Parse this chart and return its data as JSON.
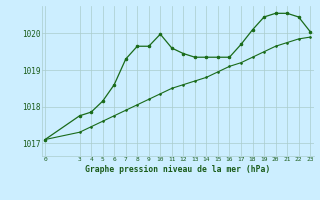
{
  "title": "Graphe pression niveau de la mer (hPa)",
  "background_color": "#cceeff",
  "grid_color": "#aacccc",
  "line_color": "#1a6b1a",
  "x_ticks": [
    0,
    3,
    4,
    5,
    6,
    7,
    8,
    9,
    10,
    11,
    12,
    13,
    14,
    15,
    16,
    17,
    18,
    19,
    20,
    21,
    22,
    23
  ],
  "ylim": [
    1016.65,
    1020.75
  ],
  "yticks": [
    1017,
    1018,
    1019,
    1020
  ],
  "line1_x": [
    0,
    3,
    4,
    5,
    6,
    7,
    8,
    9,
    10,
    11,
    12,
    13,
    14,
    15,
    16,
    17,
    18,
    19,
    20,
    21,
    22,
    23
  ],
  "line1_y": [
    1017.1,
    1017.75,
    1017.85,
    1018.15,
    1018.6,
    1019.3,
    1019.65,
    1019.65,
    1019.98,
    1019.6,
    1019.45,
    1019.35,
    1019.35,
    1019.35,
    1019.35,
    1019.7,
    1020.1,
    1020.45,
    1020.55,
    1020.55,
    1020.45,
    1020.05
  ],
  "line2_x": [
    0,
    3,
    4,
    5,
    6,
    7,
    8,
    9,
    10,
    11,
    12,
    13,
    14,
    15,
    16,
    17,
    18,
    19,
    20,
    21,
    22,
    23
  ],
  "line2_y": [
    1017.1,
    1017.3,
    1017.45,
    1017.6,
    1017.75,
    1017.9,
    1018.05,
    1018.2,
    1018.35,
    1018.5,
    1018.6,
    1018.7,
    1018.8,
    1018.95,
    1019.1,
    1019.2,
    1019.35,
    1019.5,
    1019.65,
    1019.75,
    1019.85,
    1019.9
  ],
  "figsize": [
    3.2,
    2.0
  ],
  "dpi": 100
}
